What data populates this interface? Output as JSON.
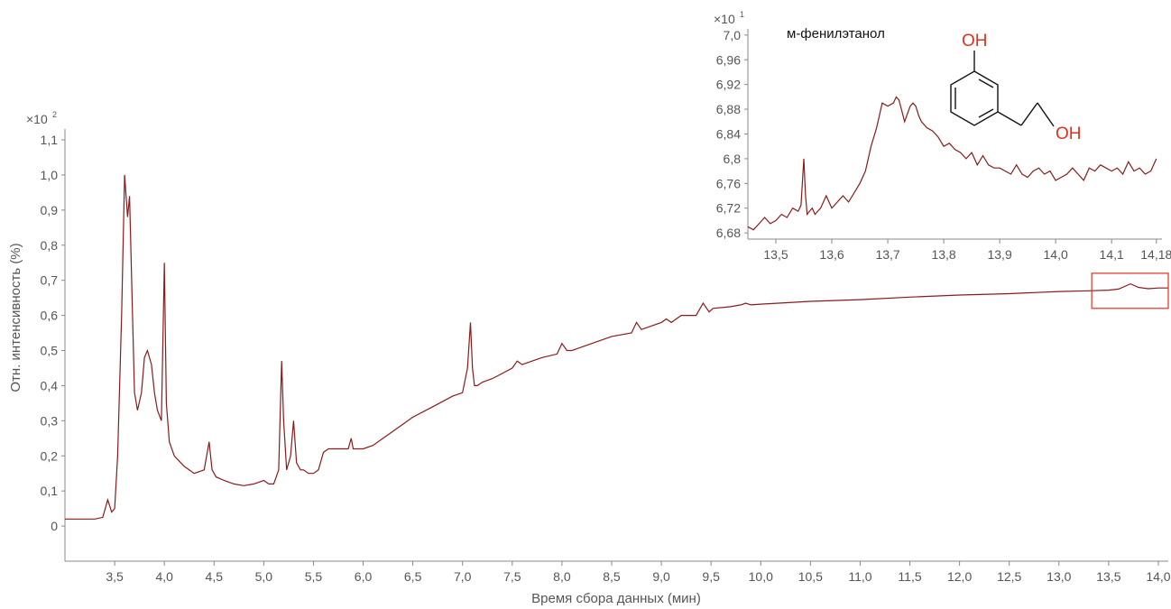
{
  "colors": {
    "trace": "#8b1a1a",
    "axis": "#555555",
    "highlight": "#e0301e"
  },
  "chart_data": [
    {
      "type": "line",
      "xlabel": "Время сбора данных (мин)",
      "ylabel": "Отн. интенсивность (%)",
      "y_multiplier": {
        "base": "×10",
        "exp": "2"
      },
      "xlim": [
        3.0,
        14.1
      ],
      "ylim": [
        -0.1,
        1.1
      ],
      "x_tick_labels": [
        "3,5",
        "4,0",
        "4,5",
        "5,0",
        "5,5",
        "6,0",
        "6,5",
        "7,0",
        "7,5",
        "8,0",
        "8,5",
        "9,0",
        "9,5",
        "10,0",
        "10,5",
        "11,0",
        "11,5",
        "12,0",
        "12,5",
        "13,0",
        "13,5",
        "14,0"
      ],
      "y_tick_labels": [
        "0",
        "0,1",
        "0,2",
        "0,3",
        "0,4",
        "0,5",
        "0,6",
        "0,7",
        "0,8",
        "0,9",
        "1,0",
        "1,1"
      ],
      "highlight_region": {
        "x": [
          13.33,
          14.1
        ],
        "y": [
          0.62,
          0.72
        ]
      },
      "series": [
        {
          "x": [
            3.0,
            3.3,
            3.38,
            3.43,
            3.47,
            3.5,
            3.53,
            3.55,
            3.57,
            3.6,
            3.63,
            3.65,
            3.68,
            3.7,
            3.73,
            3.77,
            3.8,
            3.83,
            3.87,
            3.9,
            3.93,
            3.97,
            4.0,
            4.02,
            4.05,
            4.1,
            4.2,
            4.3,
            4.4,
            4.45,
            4.48,
            4.52,
            4.6,
            4.7,
            4.8,
            4.9,
            5.0,
            5.05,
            5.1,
            5.15,
            5.18,
            5.2,
            5.23,
            5.27,
            5.3,
            5.33,
            5.37,
            5.4,
            5.45,
            5.5,
            5.55,
            5.6,
            5.65,
            5.7,
            5.8,
            5.85,
            5.88,
            5.9,
            5.95,
            6.0,
            6.1,
            6.2,
            6.3,
            6.5,
            6.7,
            6.9,
            7.0,
            7.05,
            7.08,
            7.1,
            7.12,
            7.15,
            7.2,
            7.3,
            7.5,
            7.55,
            7.6,
            7.7,
            7.8,
            7.95,
            8.0,
            8.05,
            8.1,
            8.3,
            8.5,
            8.7,
            8.75,
            8.8,
            9.0,
            9.05,
            9.1,
            9.2,
            9.35,
            9.42,
            9.48,
            9.52,
            9.7,
            9.8,
            9.85,
            9.9,
            10.0,
            10.5,
            11.0,
            11.5,
            12.0,
            12.5,
            13.0,
            13.3,
            13.5,
            13.6,
            13.72,
            13.8,
            13.9,
            14.0,
            14.1
          ],
          "y": [
            0.02,
            0.02,
            0.025,
            0.075,
            0.04,
            0.05,
            0.2,
            0.4,
            0.6,
            1.0,
            0.88,
            0.94,
            0.6,
            0.38,
            0.33,
            0.38,
            0.48,
            0.5,
            0.46,
            0.38,
            0.33,
            0.3,
            0.75,
            0.35,
            0.24,
            0.2,
            0.17,
            0.15,
            0.16,
            0.24,
            0.16,
            0.14,
            0.13,
            0.12,
            0.115,
            0.12,
            0.13,
            0.12,
            0.12,
            0.16,
            0.47,
            0.3,
            0.16,
            0.2,
            0.3,
            0.18,
            0.16,
            0.16,
            0.15,
            0.15,
            0.16,
            0.21,
            0.22,
            0.22,
            0.22,
            0.22,
            0.25,
            0.22,
            0.22,
            0.22,
            0.23,
            0.25,
            0.27,
            0.31,
            0.34,
            0.37,
            0.38,
            0.45,
            0.58,
            0.45,
            0.4,
            0.4,
            0.41,
            0.42,
            0.45,
            0.47,
            0.46,
            0.47,
            0.48,
            0.49,
            0.52,
            0.5,
            0.5,
            0.52,
            0.54,
            0.55,
            0.58,
            0.56,
            0.58,
            0.59,
            0.58,
            0.6,
            0.6,
            0.635,
            0.61,
            0.62,
            0.625,
            0.63,
            0.635,
            0.63,
            0.632,
            0.64,
            0.645,
            0.652,
            0.658,
            0.662,
            0.668,
            0.67,
            0.672,
            0.675,
            0.69,
            0.68,
            0.676,
            0.678,
            0.678
          ]
        }
      ]
    },
    {
      "type": "line",
      "title": "м-фенилэтанол",
      "y_multiplier": {
        "base": "×10",
        "exp": "1"
      },
      "xlim": [
        13.45,
        14.19
      ],
      "ylim": [
        6.67,
        7.01
      ],
      "x_tick_labels": [
        "13,5",
        "13,6",
        "13,7",
        "13,8",
        "13,9",
        "14,0",
        "14,1",
        "14,18"
      ],
      "y_tick_labels": [
        "6,68",
        "6,72",
        "6,76",
        "6,8",
        "6,84",
        "6,88",
        "6,92",
        "6,96",
        "7,0"
      ],
      "structure_labels": [
        "OH",
        "OH"
      ],
      "series": [
        {
          "x": [
            13.45,
            13.46,
            13.47,
            13.48,
            13.49,
            13.5,
            13.51,
            13.52,
            13.53,
            13.54,
            13.545,
            13.55,
            13.553,
            13.556,
            13.56,
            13.565,
            13.57,
            13.58,
            13.59,
            13.6,
            13.61,
            13.62,
            13.63,
            13.64,
            13.65,
            13.66,
            13.67,
            13.68,
            13.69,
            13.7,
            13.71,
            13.715,
            13.72,
            13.73,
            13.74,
            13.745,
            13.75,
            13.755,
            13.76,
            13.77,
            13.78,
            13.79,
            13.8,
            13.81,
            13.82,
            13.83,
            13.84,
            13.85,
            13.86,
            13.87,
            13.88,
            13.89,
            13.9,
            13.91,
            13.92,
            13.93,
            13.94,
            13.95,
            13.96,
            13.97,
            13.98,
            13.99,
            14.0,
            14.01,
            14.02,
            14.03,
            14.04,
            14.05,
            14.06,
            14.07,
            14.08,
            14.09,
            14.1,
            14.11,
            14.12,
            14.13,
            14.14,
            14.15,
            14.16,
            14.17,
            14.18
          ],
          "y": [
            6.69,
            6.685,
            6.695,
            6.705,
            6.695,
            6.7,
            6.71,
            6.705,
            6.72,
            6.715,
            6.725,
            6.8,
            6.74,
            6.71,
            6.715,
            6.72,
            6.71,
            6.72,
            6.74,
            6.72,
            6.73,
            6.74,
            6.73,
            6.745,
            6.76,
            6.78,
            6.82,
            6.85,
            6.89,
            6.885,
            6.89,
            6.9,
            6.895,
            6.86,
            6.885,
            6.89,
            6.885,
            6.87,
            6.86,
            6.85,
            6.845,
            6.835,
            6.82,
            6.825,
            6.815,
            6.81,
            6.8,
            6.81,
            6.79,
            6.805,
            6.79,
            6.785,
            6.785,
            6.78,
            6.775,
            6.79,
            6.775,
            6.77,
            6.78,
            6.785,
            6.775,
            6.78,
            6.765,
            6.77,
            6.775,
            6.785,
            6.775,
            6.765,
            6.785,
            6.78,
            6.79,
            6.785,
            6.78,
            6.785,
            6.775,
            6.795,
            6.78,
            6.785,
            6.775,
            6.78,
            6.8
          ]
        }
      ]
    }
  ]
}
